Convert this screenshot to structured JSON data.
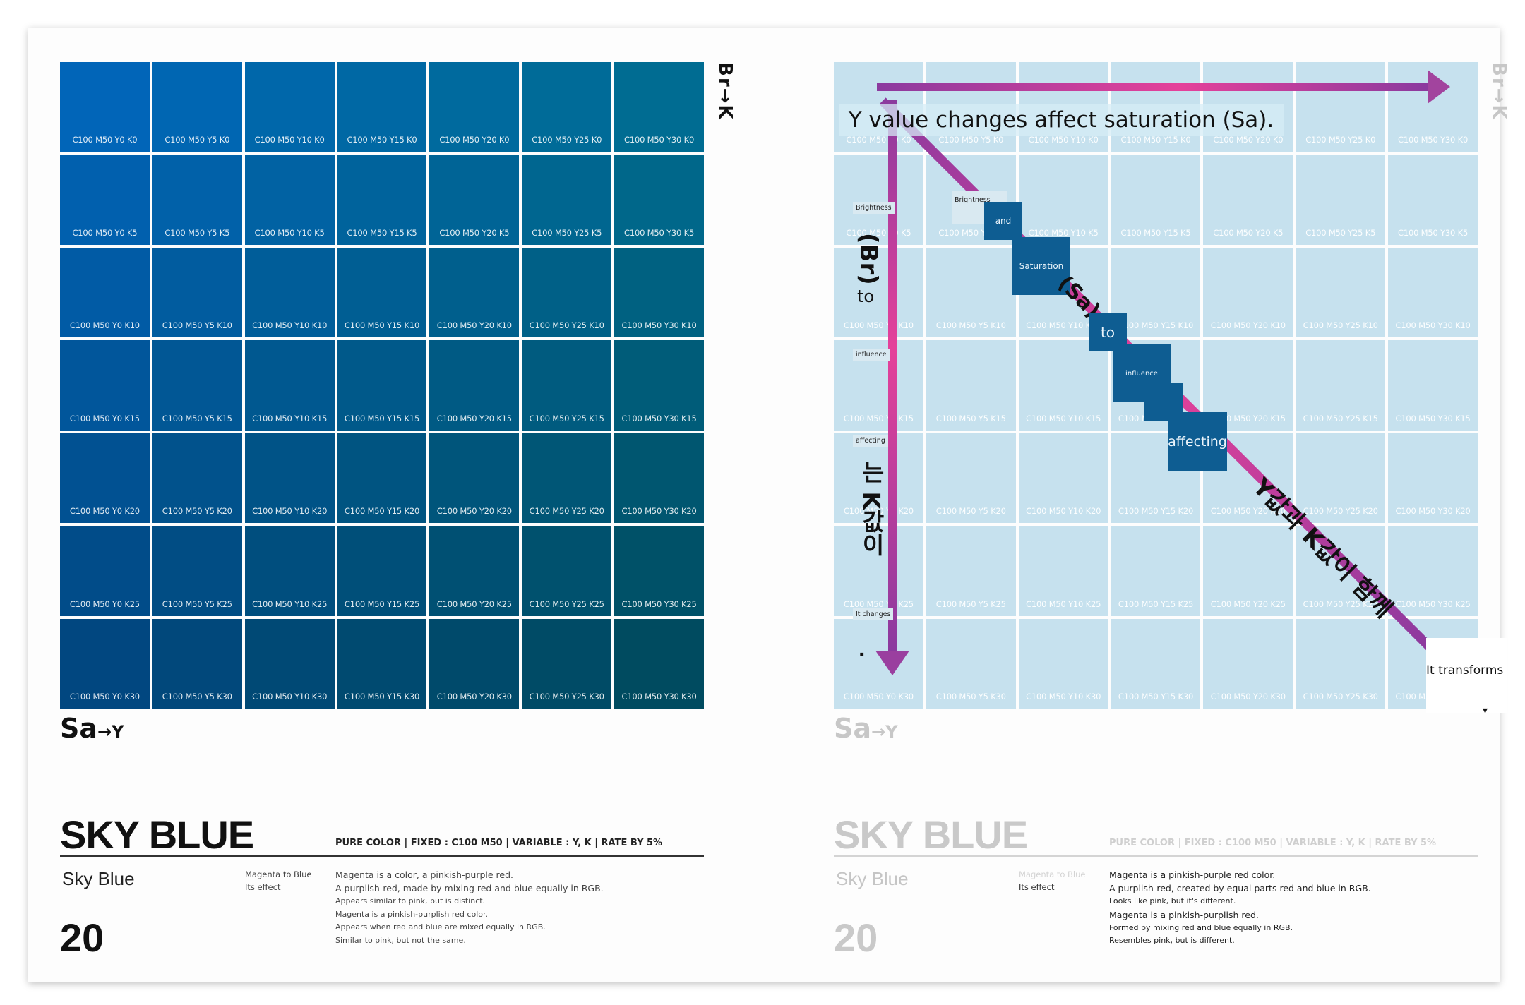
{
  "colors": {
    "left_grid": [
      [
        "#0165b8",
        "#0066b2",
        "#0067aa",
        "#0068a4",
        "#006a9e",
        "#006b98",
        "#006c92"
      ],
      [
        "#0160ae",
        "#0161a9",
        "#0162a3",
        "#00639c",
        "#006496",
        "#006690",
        "#00678a"
      ],
      [
        "#015ba5",
        "#015c9f",
        "#005d99",
        "#005e93",
        "#005f8d",
        "#006087",
        "#006181"
      ],
      [
        "#01569b",
        "#015795",
        "#005890",
        "#00598a",
        "#005a84",
        "#005b7f",
        "#005c79"
      ],
      [
        "#015192",
        "#01528c",
        "#005387",
        "#005481",
        "#00557b",
        "#005676",
        "#005670"
      ],
      [
        "#014c89",
        "#014d84",
        "#004e7e",
        "#004f79",
        "#005073",
        "#00516e",
        "#005168"
      ],
      [
        "#014780",
        "#01487b",
        "#004975",
        "#004a70",
        "#004a6b",
        "#004b66",
        "#004b60"
      ]
    ],
    "right_grid": "#c6e1ee",
    "arrow_magenta": "#e5419a",
    "arrow_purple": "#8b3a9e",
    "tag_dark": "#0e5d92"
  },
  "left_page": {
    "axis_br": "Br→K",
    "axis_sa": "Sa",
    "axis_sa_arrow": "→Y",
    "title": "SKY BLUE",
    "spec": "PURE COLOR  |  FIXED : C100 M50  |  VARIABLE : Y, K  |  RATE BY 5%",
    "subtitle": "Sky Blue",
    "page_number": "20",
    "meta_1": "Magenta to Blue",
    "meta_2": "Its effect",
    "desc": [
      "Magenta is a color, a pinkish-purple red.",
      "A purplish-red, made by mixing red and blue equally in RGB.",
      "Appears similar to pink, but is distinct.",
      "Magenta is a pinkish-purplish red color.",
      "Appears when red and blue are mixed equally in RGB.",
      "Similar to pink, but not the same."
    ]
  },
  "right_page": {
    "axis_br": "Br→K",
    "axis_sa": "Sa",
    "axis_sa_arrow": "→Y",
    "title": "SKY BLUE",
    "spec": "PURE COLOR  |  FIXED : C100 M50  |  VARIABLE : Y, K  |  RATE BY 5%",
    "subtitle": "Sky Blue",
    "page_number": "20",
    "meta_1": "Magenta to Blue",
    "meta_2": "Its effect",
    "desc": [
      "Magenta is a pinkish-purple red color.",
      "A purplish-red, created by equal parts red and blue in RGB.",
      "Looks like pink, but it's different.",
      "Magenta is a pinkish-purplish red.",
      "Formed by mixing red and blue equally in RGB.",
      "Resembles pink, but is different."
    ]
  },
  "grid": {
    "rows": [
      [
        "C100 M50 Y0 K0",
        "C100 M50 Y5 K0",
        "C100 M50 Y10 K0",
        "C100 M50 Y15 K0",
        "C100 M50 Y20 K0",
        "C100 M50 Y25 K0",
        "C100 M50 Y30 K0"
      ],
      [
        "C100 M50 Y0 K5",
        "C100 M50 Y5 K5",
        "C100 M50 Y10 K5",
        "C100 M50 Y15 K5",
        "C100 M50 Y20 K5",
        "C100 M50 Y25 K5",
        "C100 M50 Y30 K5"
      ],
      [
        "C100 M50 Y0 K10",
        "C100 M50 Y5 K10",
        "C100 M50 Y10 K10",
        "C100 M50 Y15 K10",
        "C100 M50 Y20 K10",
        "C100 M50 Y25 K10",
        "C100 M50 Y30 K10"
      ],
      [
        "C100 M50 Y0 K15",
        "C100 M50 Y5 K15",
        "C100 M50 Y10 K15",
        "C100 M50 Y15 K15",
        "C100 M50 Y20 K15",
        "C100 M50 Y25 K15",
        "C100 M50 Y30 K15"
      ],
      [
        "C100 M50 Y0 K20",
        "C100 M50 Y5 K20",
        "C100 M50 Y10 K20",
        "C100 M50 Y15 K20",
        "C100 M50 Y20 K20",
        "C100 M50 Y25 K20",
        "C100 M50 Y30 K20"
      ],
      [
        "C100 M50 Y0 K25",
        "C100 M50 Y5 K25",
        "C100 M50 Y10 K25",
        "C100 M50 Y15 K25",
        "C100 M50 Y20 K25",
        "C100 M50 Y25 K25",
        "C100 M50 Y30 K25"
      ],
      [
        "C100 M50 Y0 K30",
        "C100 M50 Y5 K30",
        "C100 M50 Y10 K30",
        "C100 M50 Y15 K30",
        "C100 M50 Y20 K30",
        "C100 M50 Y25 K30",
        "C100 M50 Y30 K30"
      ]
    ]
  },
  "annotations": {
    "headline": "Y value changes affect saturation (Sa).",
    "vertical_words": [
      "Brightness",
      "(Br)",
      "to",
      "influence",
      "affecting",
      "는 K값이",
      "It changes",
      "."
    ],
    "diagonal_words": [
      "Brightness",
      "and",
      "Saturation",
      "(Sa)",
      "to",
      "influence",
      "affecting",
      "Y값과 K값이 함께",
      "It transforms"
    ]
  }
}
